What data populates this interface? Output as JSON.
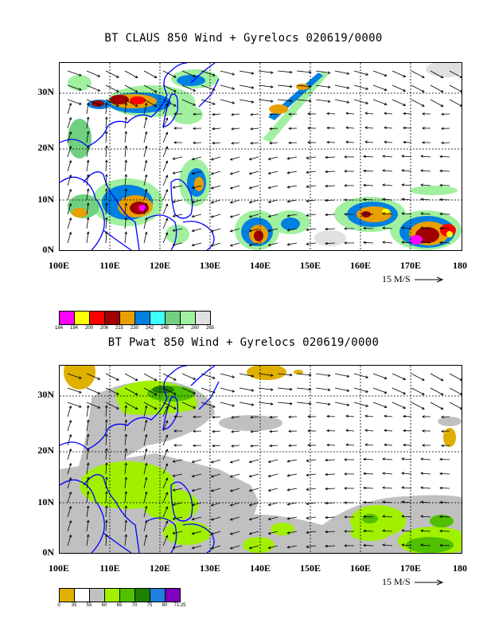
{
  "panels": [
    {
      "title": "BT CLAUS 850 Wind + Gyrelocs 020619/0000",
      "y_ticks": [
        "30N",
        "20N",
        "10N",
        "0N"
      ],
      "x_ticks": [
        "100E",
        "110E",
        "120E",
        "130E",
        "140E",
        "150E",
        "160E",
        "170E",
        "180"
      ],
      "wind_scale_label": "15 M/S",
      "legend": {
        "colors": [
          "#ff00ff",
          "#ffff00",
          "#ff0000",
          "#a00000",
          "#e8a000",
          "#0080e0",
          "#40ffff",
          "#70d080",
          "#a0f0a0",
          "#e0e0e0"
        ],
        "labels": [
          "184",
          "194",
          "200",
          "206",
          "215",
          "230",
          "242",
          "248",
          "254",
          "260",
          "265"
        ]
      }
    },
    {
      "title": "BT Pwat 850 Wind + Gyrelocs 020619/0000",
      "y_ticks": [
        "30N",
        "20N",
        "10N",
        "0N"
      ],
      "x_ticks": [
        "100E",
        "110E",
        "120E",
        "130E",
        "140E",
        "150E",
        "160E",
        "170E",
        "180"
      ],
      "wind_scale_label": "15 M/S",
      "legend": {
        "colors": [
          "#e0b000",
          "#ffffff",
          "#c0c0c0",
          "#a0f000",
          "#50c000",
          "#208000",
          "#2080e0",
          "#8000c0"
        ],
        "labels": [
          "0",
          "35",
          "55",
          "60",
          "65",
          "70",
          "75",
          "80",
          "71.25"
        ]
      }
    }
  ]
}
